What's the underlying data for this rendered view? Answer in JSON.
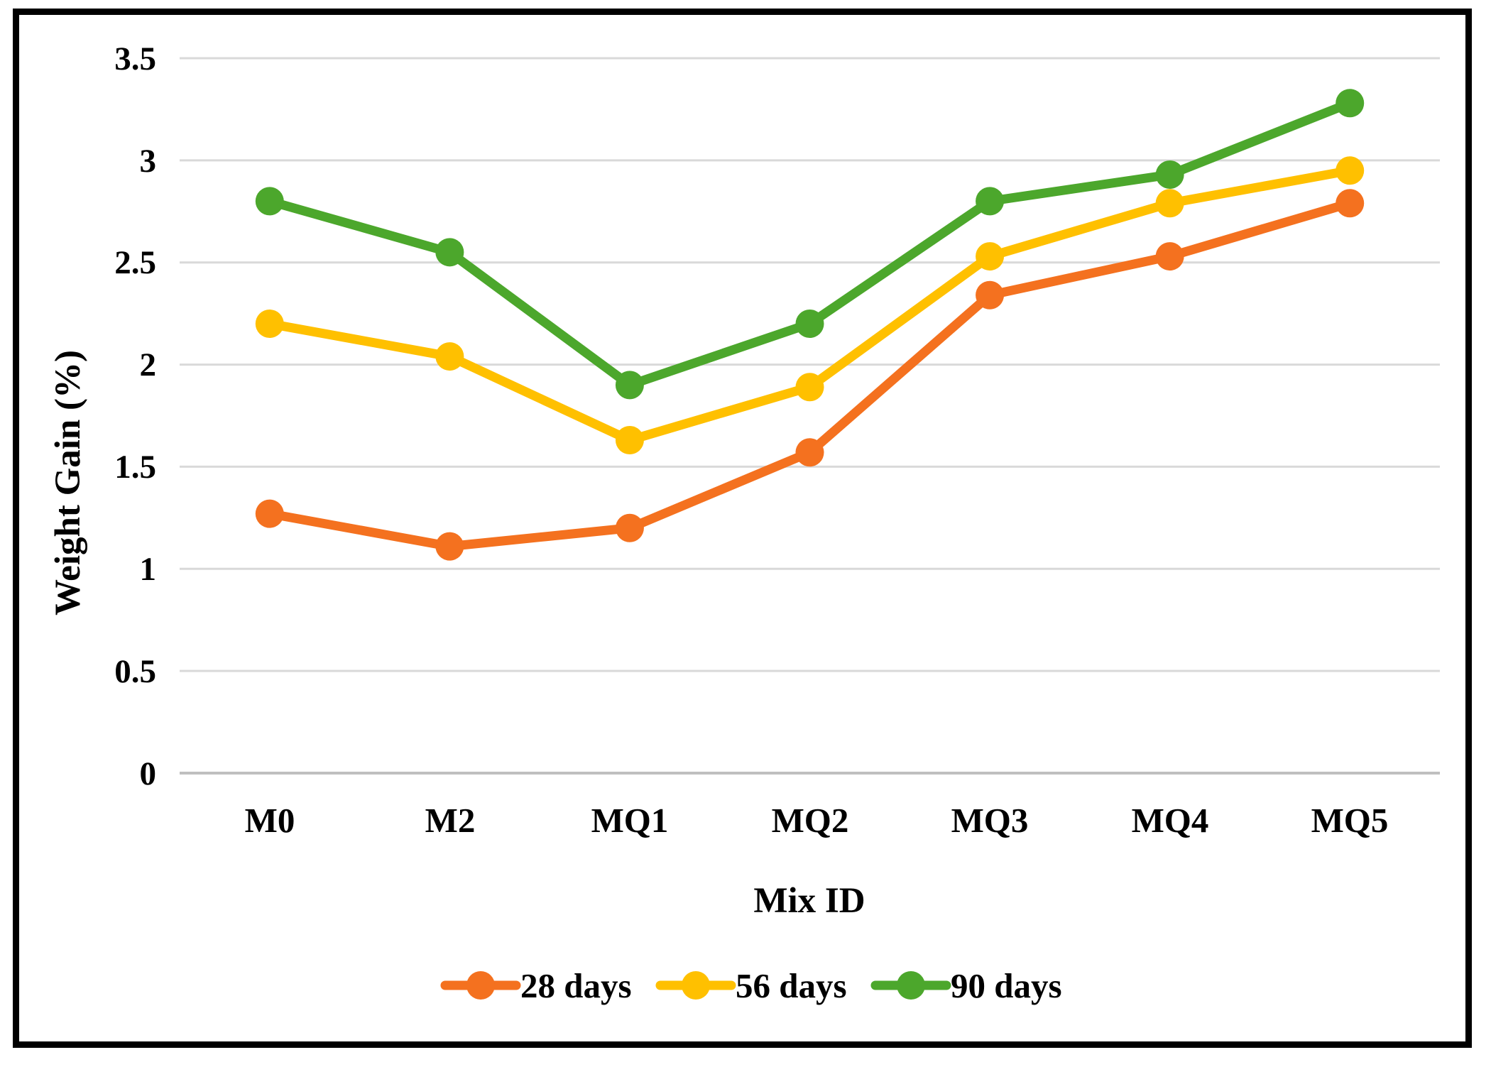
{
  "figure": {
    "background": "#FFFFFF",
    "border_color": "#000000"
  },
  "chart_data": {
    "type": "line",
    "title": "",
    "xlabel": "Mix ID",
    "ylabel": "Weight Gain (%)",
    "categories": [
      "M0",
      "M2",
      "MQ1",
      "MQ2",
      "MQ3",
      "MQ4",
      "MQ5"
    ],
    "series": [
      {
        "name": "28 days",
        "color": "#F4711F",
        "values": [
          1.27,
          1.11,
          1.2,
          1.57,
          2.34,
          2.53,
          2.79
        ]
      },
      {
        "name": "56 days",
        "color": "#FFC000",
        "values": [
          2.2,
          2.04,
          1.63,
          1.89,
          2.53,
          2.79,
          2.95
        ]
      },
      {
        "name": "90 days",
        "color": "#4CA72C",
        "values": [
          2.8,
          2.55,
          1.9,
          2.2,
          2.8,
          2.93,
          3.28
        ]
      }
    ],
    "ylim": [
      0,
      3.5
    ],
    "ytick_step": 0.5,
    "ytick_labels": [
      "0",
      "0.5",
      "1",
      "1.5",
      "2",
      "2.5",
      "3",
      "3.5"
    ],
    "grid": "horizontal",
    "gridline_color": "#D9D9D9",
    "axis_line_color": "#BFBFBF",
    "text_color": "#000000",
    "legend_position": "bottom"
  }
}
